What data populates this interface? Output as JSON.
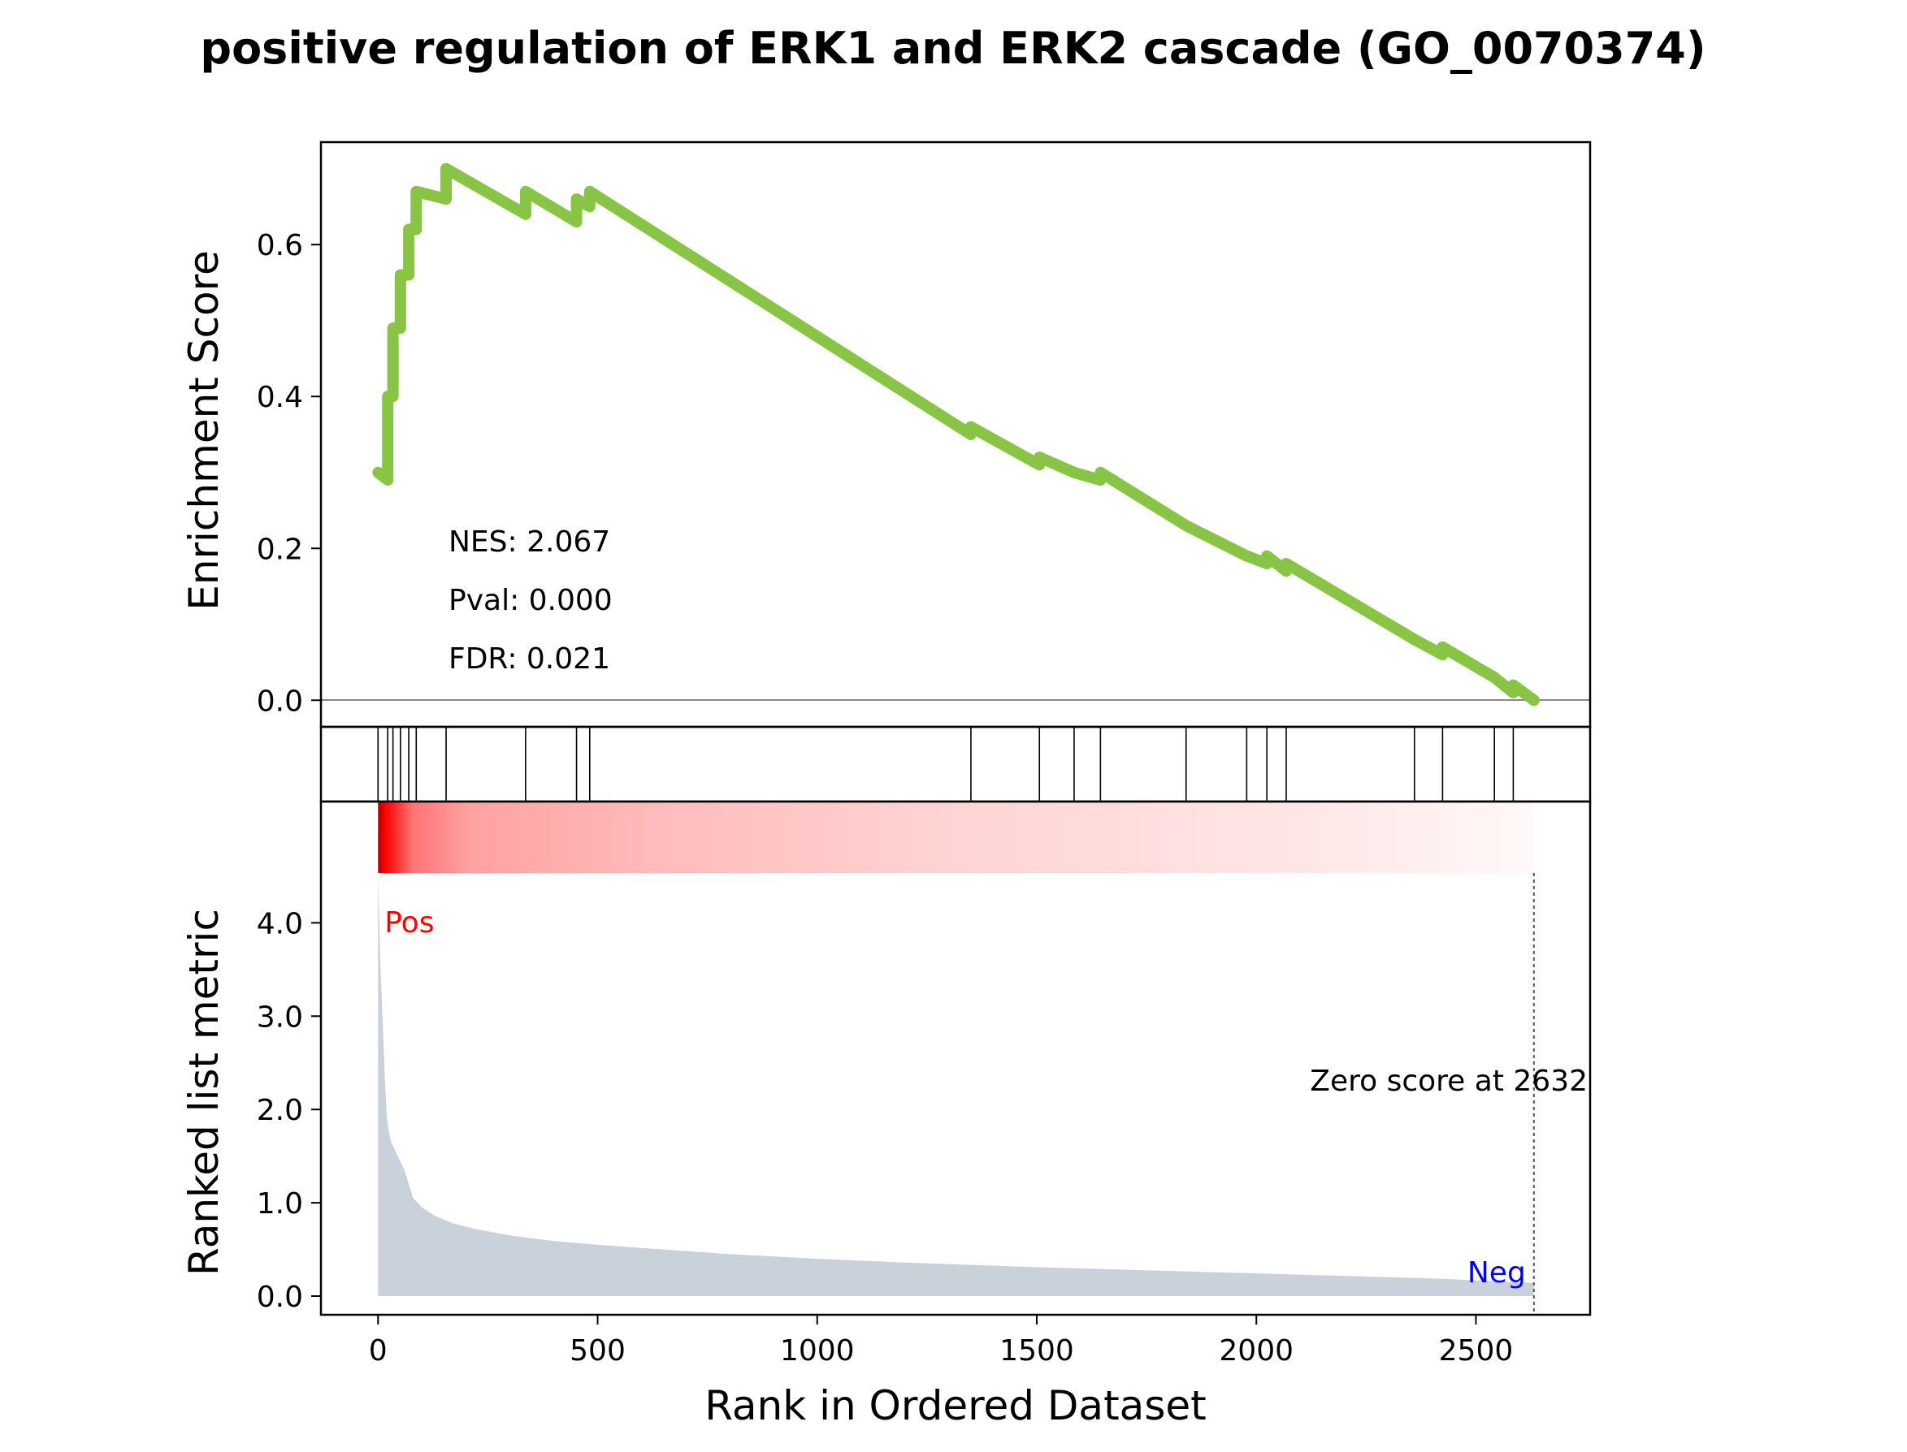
{
  "chart_data": [
    {
      "type": "line",
      "title": "positive regulation of ERK1 and ERK2 cascade (GO_0070374)",
      "xlabel": "",
      "ylabel": "Enrichment Score",
      "xlim": [
        -130,
        2760
      ],
      "ylim": [
        -0.035,
        0.735
      ],
      "yticks": [
        0.0,
        0.2,
        0.4,
        0.6
      ],
      "ytick_labels": [
        "0.0",
        "0.2",
        "0.4",
        "0.6"
      ],
      "series": [
        {
          "color": "#88C544",
          "points": [
            [
              0,
              0.3
            ],
            [
              22,
              0.29
            ],
            [
              22,
              0.4
            ],
            [
              34,
              0.4
            ],
            [
              34,
              0.49
            ],
            [
              51,
              0.49
            ],
            [
              51,
              0.56
            ],
            [
              70,
              0.56
            ],
            [
              70,
              0.62
            ],
            [
              87,
              0.62
            ],
            [
              87,
              0.67
            ],
            [
              155,
              0.66
            ],
            [
              155,
              0.7
            ],
            [
              336,
              0.64
            ],
            [
              336,
              0.67
            ],
            [
              452,
              0.63
            ],
            [
              452,
              0.66
            ],
            [
              482,
              0.65
            ],
            [
              482,
              0.67
            ],
            [
              1350,
              0.35
            ],
            [
              1350,
              0.36
            ],
            [
              1506,
              0.31
            ],
            [
              1506,
              0.32
            ],
            [
              1585,
              0.3
            ],
            [
              1585,
              0.3
            ],
            [
              1645,
              0.29
            ],
            [
              1645,
              0.3
            ],
            [
              1840,
              0.23
            ],
            [
              1840,
              0.23
            ],
            [
              1978,
              0.19
            ],
            [
              1978,
              0.19
            ],
            [
              2024,
              0.18
            ],
            [
              2024,
              0.19
            ],
            [
              2068,
              0.17
            ],
            [
              2068,
              0.18
            ],
            [
              2360,
              0.08
            ],
            [
              2360,
              0.08
            ],
            [
              2424,
              0.06
            ],
            [
              2424,
              0.07
            ],
            [
              2542,
              0.03
            ],
            [
              2542,
              0.03
            ],
            [
              2585,
              0.01
            ],
            [
              2585,
              0.02
            ],
            [
              2632,
              0.0
            ]
          ]
        }
      ],
      "zero_line": 0.0,
      "annotations": [
        "NES: 2.067",
        "Pval: 0.000",
        "FDR: 0.021"
      ]
    },
    {
      "type": "event-ticks",
      "xlim": [
        -130,
        2760
      ],
      "hits": [
        0,
        22,
        34,
        51,
        70,
        87,
        155,
        336,
        452,
        482,
        1350,
        1506,
        1585,
        1645,
        1840,
        1978,
        2024,
        2068,
        2360,
        2424,
        2542,
        2585
      ]
    },
    {
      "type": "area",
      "xlabel": "Rank in Ordered Dataset",
      "ylabel": "Ranked list metric",
      "xlim": [
        -130,
        2760
      ],
      "ylim": [
        -0.2,
        5.3
      ],
      "xticks": [
        0,
        500,
        1000,
        1500,
        2000,
        2500
      ],
      "xtick_labels": [
        "0",
        "500",
        "1000",
        "1500",
        "2000",
        "2500"
      ],
      "yticks": [
        0.0,
        1.0,
        2.0,
        3.0,
        4.0
      ],
      "ytick_labels": [
        "0.0",
        "1.0",
        "2.0",
        "3.0",
        "4.0"
      ],
      "fill_color": "#C9D2DB",
      "profile": [
        [
          0,
          4.5
        ],
        [
          5,
          3.6
        ],
        [
          10,
          3.0
        ],
        [
          15,
          2.4
        ],
        [
          20,
          1.9
        ],
        [
          25,
          1.75
        ],
        [
          30,
          1.65
        ],
        [
          40,
          1.55
        ],
        [
          50,
          1.45
        ],
        [
          60,
          1.35
        ],
        [
          70,
          1.2
        ],
        [
          80,
          1.05
        ],
        [
          100,
          0.95
        ],
        [
          130,
          0.86
        ],
        [
          170,
          0.78
        ],
        [
          220,
          0.72
        ],
        [
          300,
          0.65
        ],
        [
          400,
          0.59
        ],
        [
          500,
          0.55
        ],
        [
          650,
          0.5
        ],
        [
          800,
          0.45
        ],
        [
          1000,
          0.4
        ],
        [
          1200,
          0.36
        ],
        [
          1500,
          0.31
        ],
        [
          1800,
          0.27
        ],
        [
          2100,
          0.23
        ],
        [
          2400,
          0.19
        ],
        [
          2632,
          0.14
        ]
      ],
      "heatmap": {
        "colormap": "seismic-positive",
        "x_range": [
          0,
          2632
        ]
      },
      "zero_score": 2632,
      "labels": {
        "pos": "Pos",
        "neg": "Neg",
        "zero_score": "Zero score at 2632"
      },
      "label_colors": {
        "pos": "#FF0000",
        "neg": "#0000FF"
      }
    }
  ]
}
